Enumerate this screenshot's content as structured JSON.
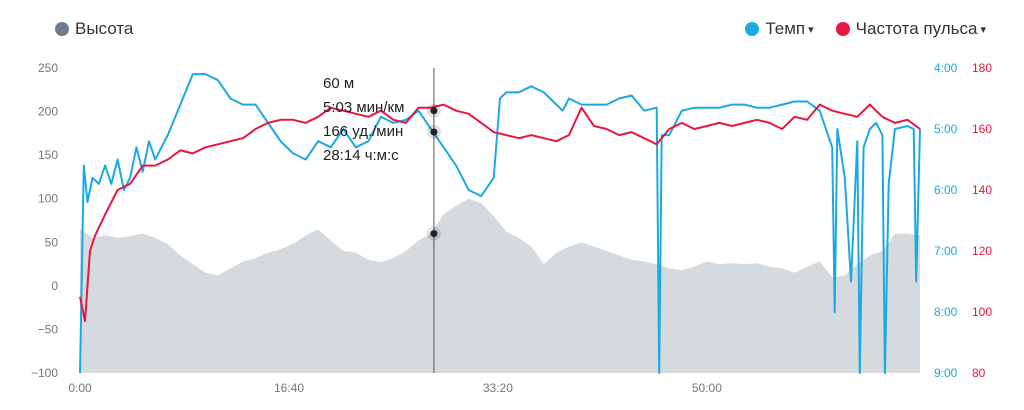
{
  "legend": {
    "altitude": {
      "label": "Высота",
      "color": "#6f7d8a"
    },
    "pace": {
      "label": "Темп",
      "color": "#1ba9e1",
      "caret": "▾"
    },
    "heart_rate": {
      "label": "Частота пульса",
      "color": "#e8173f",
      "caret": "▾"
    }
  },
  "tooltip": {
    "altitude": "60 м",
    "pace": "5:03 мин/км",
    "heart_rate": "166 уд./мин",
    "time": "28:14 ч:м:с"
  },
  "chart_data": {
    "type": "line",
    "grid": false,
    "x_axis": {
      "label": "",
      "unit": "min",
      "ticks": [
        "0:00",
        "16:40",
        "33:20",
        "50:00"
      ],
      "tick_values": [
        0,
        16.67,
        33.33,
        50
      ],
      "range": [
        0,
        67
      ]
    },
    "y_axis_left": {
      "label": "",
      "ticks": [
        "250",
        "200",
        "150",
        "100",
        "50",
        "0",
        "−50",
        "−100"
      ],
      "range": [
        -100,
        250
      ]
    },
    "y_axis_pace": {
      "label": "",
      "ticks": [
        "4:00",
        "5:00",
        "6:00",
        "7:00",
        "8:00",
        "9:00"
      ],
      "range": [
        4,
        9
      ],
      "color": "#1ba9e1"
    },
    "y_axis_hr": {
      "label": "",
      "ticks": [
        "180",
        "160",
        "140",
        "120",
        "100",
        "80"
      ],
      "range": [
        80,
        180
      ],
      "color": "#e8173f"
    },
    "cursor_time": 28.23,
    "series": [
      {
        "name": "Высота",
        "unit": "м",
        "color": "#d5dade",
        "type": "area",
        "x": [
          0,
          1,
          2,
          3,
          4,
          5,
          6,
          7,
          8,
          9,
          10,
          11,
          12,
          13,
          14,
          15,
          16,
          17,
          18,
          19,
          20,
          21,
          22,
          23,
          24,
          25,
          26,
          27,
          28,
          29,
          30,
          31,
          32,
          33,
          34,
          35,
          36,
          37,
          38,
          39,
          40,
          41,
          42,
          43,
          44,
          45,
          46,
          47,
          48,
          49,
          50,
          51,
          52,
          53,
          54,
          55,
          56,
          57,
          58,
          59,
          60,
          61,
          62,
          63,
          64,
          65,
          66,
          67
        ],
        "y": [
          65,
          55,
          58,
          55,
          57,
          60,
          55,
          48,
          35,
          25,
          15,
          12,
          20,
          28,
          32,
          38,
          42,
          48,
          58,
          65,
          52,
          40,
          38,
          30,
          27,
          32,
          40,
          52,
          60,
          82,
          92,
          100,
          95,
          80,
          62,
          55,
          45,
          25,
          38,
          45,
          50,
          45,
          40,
          35,
          30,
          28,
          25,
          20,
          18,
          22,
          28,
          25,
          26,
          25,
          26,
          22,
          20,
          15,
          22,
          28,
          10,
          12,
          25,
          35,
          40,
          60,
          60,
          58
        ]
      },
      {
        "name": "Темп",
        "unit": "мин/км",
        "color": "#1ba9e1",
        "type": "line",
        "x": [
          0,
          0.3,
          0.6,
          1,
          1.5,
          2,
          2.5,
          3,
          3.5,
          4,
          4.5,
          5,
          5.5,
          6,
          7,
          8,
          9,
          10,
          11,
          12,
          13,
          14,
          15,
          16,
          17,
          18,
          19,
          20,
          21,
          22,
          23,
          24,
          25,
          26,
          27,
          28,
          29,
          30,
          31,
          32,
          33,
          33.5,
          34,
          35,
          36,
          37,
          38,
          38.5,
          39,
          40,
          41,
          42,
          43,
          44,
          45,
          46,
          46.2,
          46.4,
          47,
          48,
          49,
          50,
          51,
          52,
          53,
          54,
          55,
          56,
          57,
          58,
          59,
          60,
          60.2,
          60.4,
          61,
          61.5,
          62,
          62.2,
          62.5,
          63,
          63.5,
          64,
          64.2,
          64.5,
          65,
          66,
          66.5,
          66.7,
          67
        ],
        "y": [
          9,
          5.6,
          6.2,
          5.8,
          5.9,
          5.6,
          5.9,
          5.5,
          6.0,
          5.8,
          5.3,
          5.7,
          5.2,
          5.5,
          5.1,
          4.6,
          4.1,
          4.1,
          4.2,
          4.5,
          4.6,
          4.6,
          4.9,
          5.2,
          5.4,
          5.5,
          5.2,
          5.3,
          5.0,
          5.3,
          5.2,
          4.8,
          4.9,
          4.85,
          4.7,
          5.0,
          5.3,
          5.6,
          6.0,
          6.1,
          5.8,
          4.5,
          4.4,
          4.4,
          4.3,
          4.4,
          4.6,
          4.7,
          4.5,
          4.6,
          4.6,
          4.6,
          4.5,
          4.45,
          4.7,
          4.65,
          9.0,
          5.1,
          5.1,
          4.7,
          4.65,
          4.65,
          4.65,
          4.6,
          4.6,
          4.65,
          4.65,
          4.6,
          4.55,
          4.55,
          4.7,
          5.3,
          8.0,
          5.0,
          5.8,
          7.5,
          5.2,
          9.0,
          5.3,
          5.0,
          4.9,
          5.1,
          9.0,
          5.9,
          5.0,
          4.95,
          5.0,
          7.5,
          5.0
        ]
      },
      {
        "name": "Частота пульса",
        "unit": "уд./мин",
        "color": "#e8173f",
        "type": "line",
        "x": [
          0,
          0.4,
          0.8,
          1.2,
          2,
          3,
          4,
          5,
          6,
          7,
          8,
          9,
          10,
          11,
          12,
          13,
          14,
          15,
          16,
          17,
          18,
          19,
          20,
          21,
          22,
          23,
          24,
          25,
          26,
          27,
          28,
          29,
          30,
          31,
          32,
          33,
          34,
          35,
          36,
          37,
          38,
          39,
          40,
          41,
          42,
          43,
          44,
          45,
          46,
          47,
          48,
          49,
          50,
          51,
          52,
          53,
          54,
          55,
          56,
          57,
          58,
          59,
          60,
          61,
          62,
          63,
          64,
          65,
          66,
          67
        ],
        "y": [
          105,
          97,
          120,
          125,
          132,
          140,
          142,
          148,
          148,
          150,
          153,
          152,
          154,
          155,
          156,
          157,
          160,
          162,
          163,
          163,
          162,
          164,
          167,
          166,
          165,
          164,
          166,
          163,
          162,
          167,
          167,
          168,
          166,
          165,
          162,
          159,
          158,
          157,
          158,
          157,
          156,
          158,
          167,
          161,
          160,
          158,
          159,
          157,
          155,
          160,
          162,
          160,
          161,
          162,
          161,
          162,
          163,
          162,
          160,
          164,
          163,
          168,
          166,
          165,
          164,
          168,
          164,
          162,
          163,
          160
        ]
      }
    ]
  }
}
